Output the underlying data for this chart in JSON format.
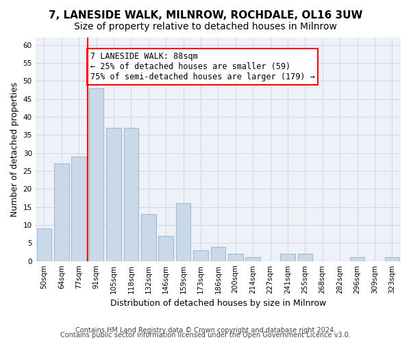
{
  "title1": "7, LANESIDE WALK, MILNROW, ROCHDALE, OL16 3UW",
  "title2": "Size of property relative to detached houses in Milnrow",
  "xlabel": "Distribution of detached houses by size in Milnrow",
  "ylabel": "Number of detached properties",
  "categories": [
    "50sqm",
    "64sqm",
    "77sqm",
    "91sqm",
    "105sqm",
    "118sqm",
    "132sqm",
    "146sqm",
    "159sqm",
    "173sqm",
    "186sqm",
    "200sqm",
    "214sqm",
    "227sqm",
    "241sqm",
    "255sqm",
    "268sqm",
    "282sqm",
    "296sqm",
    "309sqm",
    "323sqm"
  ],
  "values": [
    9,
    27,
    29,
    48,
    37,
    37,
    13,
    7,
    16,
    3,
    4,
    2,
    1,
    0,
    2,
    2,
    0,
    0,
    1,
    0,
    1
  ],
  "bar_color": "#c9d9ea",
  "bar_edge_color": "#a0bbd0",
  "vline_x": 2.5,
  "vline_color": "red",
  "annotation_text": "7 LANESIDE WALK: 88sqm\n← 25% of detached houses are smaller (59)\n75% of semi-detached houses are larger (179) →",
  "annotation_box_color": "white",
  "annotation_box_edge_color": "red",
  "ylim": [
    0,
    62
  ],
  "yticks": [
    0,
    5,
    10,
    15,
    20,
    25,
    30,
    35,
    40,
    45,
    50,
    55,
    60
  ],
  "grid_color": "#d0d8e8",
  "background_color": "#eef2f8",
  "footer1": "Contains HM Land Registry data © Crown copyright and database right 2024.",
  "footer2": "Contains public sector information licensed under the Open Government Licence v3.0.",
  "title1_fontsize": 11,
  "title2_fontsize": 10,
  "xlabel_fontsize": 9,
  "ylabel_fontsize": 9,
  "tick_fontsize": 7.5,
  "annotation_fontsize": 8.5,
  "footer_fontsize": 7
}
